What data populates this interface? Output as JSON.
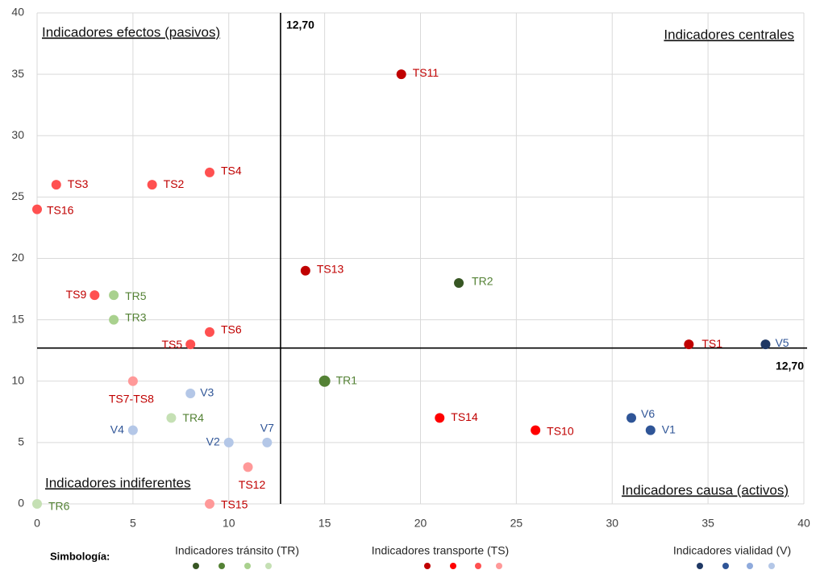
{
  "chart_data": {
    "type": "scatter",
    "xlim": [
      0,
      40
    ],
    "xticks": [
      0,
      5,
      10,
      15,
      20,
      25,
      30,
      35,
      40
    ],
    "ylim": [
      0,
      40
    ],
    "yticks": [
      0,
      5,
      10,
      15,
      20,
      25,
      30,
      35,
      40
    ],
    "grid": true,
    "x_reference": {
      "value": 12.7,
      "label": "12,70"
    },
    "y_reference": {
      "value": 12.7,
      "label": "12,70"
    },
    "annotations": [
      "Indicadores efectos (pasivos)",
      "Indicadores centrales",
      "Indicadores indiferentes",
      "Indicadores causa (activos)"
    ],
    "legend_title": "Simbología:",
    "series": [
      {
        "name": "Indicadores tránsito (TR)",
        "palette": [
          "#375623",
          "#548235",
          "#a9d18e",
          "#c5e0b4"
        ],
        "label_color": "#548235",
        "labels": [
          "TR1",
          "TR2",
          "TR3",
          "TR4",
          "TR5",
          "TR6"
        ],
        "x": [
          15,
          22,
          4,
          7,
          4,
          0
        ],
        "values": [
          10,
          18,
          15,
          7,
          17,
          0
        ],
        "colors": [
          "#548235",
          "#375623",
          "#a9d18e",
          "#c5e0b4",
          "#a9d18e",
          "#c5e0b4"
        ]
      },
      {
        "name": "Indicadores transporte (TS)",
        "palette": [
          "#c00000",
          "#ff0000",
          "#ff5050",
          "#ff9999"
        ],
        "label_color": "#c00000",
        "labels": [
          "TS1",
          "TS2",
          "TS3",
          "TS4",
          "TS5",
          "TS6",
          "TS7-TS8",
          "TS9",
          "TS10",
          "TS11",
          "TS12",
          "TS13",
          "TS14",
          "TS15",
          "TS16"
        ],
        "x": [
          34,
          6,
          1,
          9,
          8,
          9,
          5,
          3,
          26,
          19,
          11,
          14,
          21,
          9,
          0
        ],
        "values": [
          13,
          26,
          26,
          27,
          13,
          14,
          10,
          17,
          6,
          35,
          3,
          19,
          7,
          0,
          24
        ],
        "colors": [
          "#c00000",
          "#ff5050",
          "#ff5050",
          "#ff5050",
          "#ff5050",
          "#ff5050",
          "#ff9999",
          "#ff5050",
          "#ff0000",
          "#c00000",
          "#ff9999",
          "#c00000",
          "#ff0000",
          "#ff9999",
          "#ff5050"
        ]
      },
      {
        "name": "Indicadores vialidad (V)",
        "palette": [
          "#1f3864",
          "#2f5597",
          "#8faadc",
          "#b4c7e7"
        ],
        "label_color": "#2f5597",
        "labels": [
          "V1",
          "V2",
          "V3",
          "V4",
          "V5",
          "V6",
          "V7"
        ],
        "x": [
          32,
          10,
          8,
          5,
          38,
          31,
          12
        ],
        "values": [
          6,
          5,
          9,
          6,
          13,
          7,
          5
        ],
        "colors": [
          "#2f5597",
          "#b4c7e7",
          "#b4c7e7",
          "#b4c7e7",
          "#1f3864",
          "#2f5597",
          "#b4c7e7"
        ]
      }
    ]
  }
}
